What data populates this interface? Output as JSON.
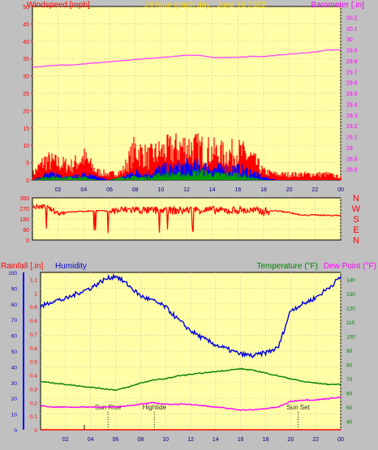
{
  "chart_data": [
    {
      "id": "wind-baro",
      "type": "line",
      "title": "24 hour graph day : June 10 2022",
      "left_axis_label": "Windspeed [mph]",
      "right_axis_label": "Barometer [.in]",
      "x_ticks": [
        "02",
        "04",
        "06",
        "08",
        "10",
        "12",
        "14",
        "16",
        "18",
        "20",
        "22",
        "00"
      ],
      "x_range_hours": [
        0,
        24
      ],
      "left_range": [
        0,
        50
      ],
      "left_ticks": [
        0,
        5,
        10,
        15,
        20,
        25,
        30,
        35,
        40,
        45,
        50
      ],
      "right_range": [
        28.7,
        30.3
      ],
      "right_ticks": [
        "28.8",
        "28.9",
        "29",
        "29.1",
        "29.2",
        "29.3",
        "29.4",
        "29.5",
        "29.6",
        "29.7",
        "29.8",
        "29.9",
        "30",
        "30.1",
        "30.2"
      ],
      "grid": true,
      "series": [
        {
          "name": "Barometer",
          "color": "#ff44ff",
          "axis": "right",
          "x": [
            0,
            1,
            2,
            3,
            4,
            5,
            6,
            7,
            8,
            9,
            10,
            11,
            12,
            13,
            14,
            15,
            16,
            17,
            18,
            19,
            20,
            21,
            22,
            23,
            24
          ],
          "y": [
            29.74,
            29.75,
            29.76,
            29.76,
            29.77,
            29.78,
            29.79,
            29.8,
            29.81,
            29.82,
            29.83,
            29.84,
            29.85,
            29.85,
            29.83,
            29.83,
            29.83,
            29.84,
            29.84,
            29.85,
            29.86,
            29.87,
            29.88,
            29.9,
            29.9
          ]
        },
        {
          "name": "Wind Gust",
          "color": "#ff0000",
          "axis": "left",
          "x": [
            0,
            1,
            2,
            3,
            4,
            5,
            6,
            7,
            8,
            9,
            10,
            11,
            12,
            13,
            14,
            15,
            16,
            17,
            18,
            19,
            20,
            21,
            22,
            23,
            24
          ],
          "y": [
            2,
            7,
            6,
            5,
            8,
            3,
            2,
            3,
            11,
            8,
            10,
            11,
            12,
            11,
            10,
            9,
            10,
            8,
            3,
            2,
            2,
            2,
            2,
            2,
            1
          ]
        },
        {
          "name": "Wind Speed",
          "color": "#0000ff",
          "axis": "left",
          "x": [
            0,
            1,
            2,
            3,
            4,
            5,
            6,
            7,
            8,
            9,
            10,
            11,
            12,
            13,
            14,
            15,
            16,
            17,
            18,
            19,
            20,
            21,
            22,
            23,
            24
          ],
          "y": [
            0,
            2,
            2,
            1,
            2,
            1,
            0,
            1,
            3,
            2,
            4,
            4,
            5,
            5,
            4,
            4,
            4,
            3,
            1,
            0,
            0,
            0,
            0,
            0,
            0
          ]
        },
        {
          "name": "Wind Avg",
          "color": "#00a000",
          "axis": "left",
          "x": [
            0,
            1,
            2,
            3,
            4,
            5,
            6,
            7,
            8,
            9,
            10,
            11,
            12,
            13,
            14,
            15,
            16,
            17,
            18,
            19,
            20,
            21,
            22,
            23,
            24
          ],
          "y": [
            0,
            1,
            1,
            1,
            1,
            0,
            0,
            1,
            1,
            1,
            2,
            2,
            2,
            3,
            2,
            2,
            2,
            1,
            0,
            0,
            0,
            0,
            0,
            0,
            0
          ]
        }
      ]
    },
    {
      "id": "direction",
      "type": "line",
      "left_range": [
        0,
        360
      ],
      "left_ticks": [
        0,
        90,
        180,
        270,
        360
      ],
      "right_labels": [
        "N",
        "W",
        "S",
        "E",
        "N"
      ],
      "x_range_hours": [
        0,
        24
      ],
      "series": [
        {
          "name": "Wind Direction",
          "color": "#ff0000",
          "x": [
            0,
            1,
            2,
            3,
            4,
            5,
            6,
            7,
            8,
            9,
            10,
            11,
            12,
            13,
            14,
            15,
            16,
            17,
            18,
            19,
            20,
            21,
            22,
            23,
            24
          ],
          "y": [
            280,
            285,
            230,
            240,
            245,
            250,
            245,
            255,
            260,
            250,
            255,
            250,
            255,
            260,
            255,
            250,
            255,
            250,
            245,
            250,
            235,
            210,
            215,
            210,
            210
          ]
        }
      ]
    },
    {
      "id": "rain-hum-temp",
      "type": "line",
      "left_axis_label": "Rainfall [.in]",
      "humidity_label": "Humidity",
      "temp_label": "Temperature (°F)",
      "dew_label": "Dew Point (°F)",
      "humidity_range": [
        0,
        100
      ],
      "humidity_ticks": [
        0,
        10,
        20,
        30,
        40,
        50,
        60,
        70,
        80,
        90,
        100
      ],
      "rain_range": [
        0,
        1.15
      ],
      "rain_ticks": [
        "0",
        "0.1",
        "0.2",
        "0.3",
        "0.4",
        "0.5",
        "0.6",
        "0.7",
        "0.8",
        "0.9",
        "1",
        "1.1"
      ],
      "temp_range": [
        34,
        145
      ],
      "temp_ticks": [
        40,
        50,
        60,
        70,
        80,
        90,
        100,
        110,
        120,
        130,
        140
      ],
      "x_ticks": [
        "02",
        "04",
        "06",
        "08",
        "10",
        "12",
        "14",
        "16",
        "18",
        "20",
        "22",
        "00"
      ],
      "x_range_hours": [
        0,
        24
      ],
      "annotations": [
        {
          "label": "Sun Rise",
          "x": 5.4
        },
        {
          "label": "Hightide",
          "x": 9.1
        },
        {
          "label": "Sun Set",
          "x": 20.6
        }
      ],
      "series": [
        {
          "name": "Humidity",
          "color": "#0000dd",
          "axis": "humidity",
          "x": [
            0,
            1,
            2,
            3,
            4,
            5,
            6,
            7,
            8,
            9,
            10,
            11,
            12,
            13,
            14,
            15,
            16,
            17,
            18,
            19,
            20,
            21,
            22,
            23,
            24
          ],
          "y": [
            78,
            82,
            83,
            87,
            90,
            95,
            98,
            92,
            85,
            82,
            78,
            70,
            63,
            58,
            54,
            51,
            48,
            47,
            49,
            52,
            76,
            80,
            84,
            90,
            97
          ]
        },
        {
          "name": "Temperature",
          "color": "#008000",
          "axis": "temp",
          "x": [
            0,
            1,
            2,
            3,
            4,
            5,
            6,
            7,
            8,
            9,
            10,
            11,
            12,
            13,
            14,
            15,
            16,
            17,
            18,
            19,
            20,
            21,
            22,
            23,
            24
          ],
          "y": [
            68,
            67,
            66,
            65,
            64,
            63,
            62,
            64,
            67,
            69,
            70,
            72,
            73,
            74,
            75,
            76,
            77,
            76,
            74,
            72,
            70,
            68,
            67,
            66,
            66
          ]
        },
        {
          "name": "Dew Point",
          "color": "#ff00ff",
          "axis": "temp",
          "x": [
            0,
            1,
            2,
            3,
            4,
            5,
            6,
            7,
            8,
            9,
            10,
            11,
            12,
            13,
            14,
            15,
            16,
            17,
            18,
            19,
            20,
            21,
            22,
            23,
            24
          ],
          "y": [
            51,
            50,
            50,
            50,
            50,
            50,
            50,
            51,
            52,
            53,
            52,
            52,
            52,
            51,
            50,
            49,
            48,
            48,
            49,
            50,
            54,
            55,
            55,
            56,
            57
          ]
        },
        {
          "name": "Rainfall",
          "color": "#ff0000",
          "axis": "rain",
          "x": [
            0,
            24
          ],
          "y": [
            0,
            0
          ]
        }
      ]
    }
  ]
}
